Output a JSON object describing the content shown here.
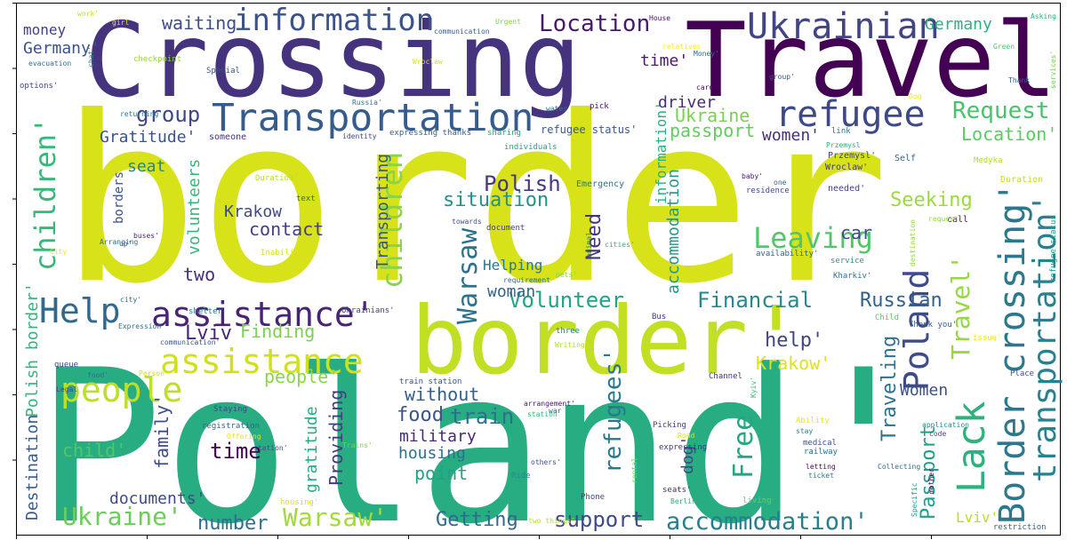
{
  "chart_data": {
    "type": "wordcloud",
    "background": "#ffffff",
    "colormap": "viridis",
    "axes": {
      "x_ticks": 8,
      "y_ticks": 8,
      "tick_labels": false
    },
    "words": [
      {
        "text": "border",
        "color": "#d7e219"
      },
      {
        "text": "Poland'",
        "color": "#27ad81"
      },
      {
        "text": "Crossing",
        "color": "#46337e"
      },
      {
        "text": "Travel",
        "color": "#440154"
      },
      {
        "text": "border'",
        "color": "#c2df23"
      },
      {
        "text": "Transportation",
        "color": "#365c8d"
      },
      {
        "text": "Ukrainian",
        "color": "#414487"
      },
      {
        "text": "information",
        "color": "#3b528b"
      },
      {
        "text": "refugee",
        "color": "#3e4989"
      },
      {
        "text": "assistance'",
        "color": "#482475"
      },
      {
        "text": "Help",
        "color": "#31688e"
      },
      {
        "text": "assistance",
        "color": "#d0e11c"
      },
      {
        "text": "people",
        "color": "#bddf26"
      },
      {
        "text": "Border crossing'",
        "color": "#2a788e"
      },
      {
        "text": "transportation'",
        "color": "#26828e"
      },
      {
        "text": "Lack",
        "color": "#2db27d"
      },
      {
        "text": "Poland",
        "color": "#3e4a89"
      },
      {
        "text": "Travel'",
        "color": "#95d840"
      },
      {
        "text": "Leaving",
        "color": "#52c569"
      },
      {
        "text": "children'",
        "color": "#37b878"
      },
      {
        "text": "children",
        "color": "#89d548"
      },
      {
        "text": "Warsaw",
        "color": "#2c728e"
      },
      {
        "text": "Warsaw'",
        "color": "#a2da37"
      },
      {
        "text": "Ukraine'",
        "color": "#6ccd5a"
      },
      {
        "text": "accommodation'",
        "color": "#277f8e"
      },
      {
        "text": "Location",
        "color": "#481a6c"
      },
      {
        "text": "Request",
        "color": "#4ac16d"
      },
      {
        "text": "Location'",
        "color": "#5ec962"
      },
      {
        "text": "group",
        "color": "#3f4788"
      },
      {
        "text": "Polish",
        "color": "#453781"
      },
      {
        "text": "situation",
        "color": "#21918c"
      },
      {
        "text": "Volunteer",
        "color": "#20a486"
      },
      {
        "text": "Financial",
        "color": "#23898e"
      },
      {
        "text": "Russian",
        "color": "#33638d"
      },
      {
        "text": "Free",
        "color": "#22a785"
      },
      {
        "text": "refugees'",
        "color": "#2a788e"
      },
      {
        "text": "Passport",
        "color": "#1f9e89"
      },
      {
        "text": "Traveling",
        "color": "#2c728e"
      },
      {
        "text": "Seeking",
        "color": "#9bd93c"
      },
      {
        "text": "Women",
        "color": "#3b528b"
      },
      {
        "text": "Krakow'",
        "color": "#dde318"
      },
      {
        "text": "help'",
        "color": "#414487"
      },
      {
        "text": "support",
        "color": "#3e4a89"
      },
      {
        "text": "Getting",
        "color": "#31688e"
      },
      {
        "text": "number",
        "color": "#2e6e8e"
      },
      {
        "text": "Lviv",
        "color": "#482475"
      },
      {
        "text": "Finding",
        "color": "#7ad151"
      },
      {
        "text": "people'",
        "color": "#8bd646"
      },
      {
        "text": "train",
        "color": "#2d708e"
      },
      {
        "text": "food",
        "color": "#3a548c"
      },
      {
        "text": "without",
        "color": "#365d8d"
      },
      {
        "text": "military",
        "color": "#482878"
      },
      {
        "text": "housing",
        "color": "#2e6f8e"
      },
      {
        "text": "point",
        "color": "#1fa287"
      },
      {
        "text": "Providing",
        "color": "#443983"
      },
      {
        "text": "gratitude",
        "color": "#25ab82"
      },
      {
        "text": "time",
        "color": "#440154"
      },
      {
        "text": "child'",
        "color": "#54c568"
      },
      {
        "text": "family'",
        "color": "#3d4d8a"
      },
      {
        "text": "Destination",
        "color": "#365c8d"
      },
      {
        "text": "Polish border'",
        "color": "#2fb47c"
      },
      {
        "text": "documents'",
        "color": "#3e4989"
      },
      {
        "text": "volunteers",
        "color": "#35b779"
      },
      {
        "text": "Krakow",
        "color": "#3e4989"
      },
      {
        "text": "contact",
        "color": "#433e85"
      },
      {
        "text": "two",
        "color": "#472d7b"
      },
      {
        "text": "Helping",
        "color": "#2a788e"
      },
      {
        "text": "woman",
        "color": "#33638d"
      },
      {
        "text": "Need",
        "color": "#46317e"
      },
      {
        "text": "Transporting",
        "color": "#3a538b"
      },
      {
        "text": "accommodation",
        "color": "#1f988b"
      },
      {
        "text": "information'",
        "color": "#2ab07f"
      },
      {
        "text": "car",
        "color": "#3e4a89"
      },
      {
        "text": "Ukraine",
        "color": "#79d151"
      },
      {
        "text": "passport",
        "color": "#63cb5f"
      },
      {
        "text": "women'",
        "color": "#46307e"
      },
      {
        "text": "Gratitude'",
        "color": "#39558c"
      },
      {
        "text": "seat",
        "color": "#25848e"
      },
      {
        "text": "waiting",
        "color": "#3d4e8a"
      },
      {
        "text": "driver",
        "color": "#472c7a"
      },
      {
        "text": "time'",
        "color": "#481b6d"
      },
      {
        "text": "Germany",
        "color": "#2db27d"
      },
      {
        "text": "Germany'",
        "color": "#3a538b"
      },
      {
        "text": "money",
        "color": "#424086"
      },
      {
        "text": "dog'",
        "color": "#414487"
      },
      {
        "text": "Lviv'",
        "color": "#bade28"
      },
      {
        "text": "borders",
        "color": "#3b518b"
      },
      {
        "text": "work'",
        "color": "#c8e020"
      },
      {
        "text": "girl",
        "color": "#e2e418"
      },
      {
        "text": "communication",
        "color": "#355f8d"
      },
      {
        "text": "Urgent",
        "color": "#7fd34e"
      },
      {
        "text": "House",
        "color": "#471063"
      },
      {
        "text": "Asking",
        "color": "#29af7f"
      },
      {
        "text": "refugee status'",
        "color": "#38588c"
      },
      {
        "text": "sharing",
        "color": "#22a884"
      },
      {
        "text": "expressing thanks",
        "color": "#34608d"
      },
      {
        "text": "identity",
        "color": "#3f4889"
      },
      {
        "text": "someone",
        "color": "#46307e"
      },
      {
        "text": "Emergency",
        "color": "#2a778e"
      },
      {
        "text": "water",
        "color": "#2d718e"
      },
      {
        "text": "pick",
        "color": "#470e61"
      },
      {
        "text": "individuals",
        "color": "#21a685"
      },
      {
        "text": "Przemysl",
        "color": "#27ad81"
      },
      {
        "text": "Przemysl'",
        "color": "#414487"
      },
      {
        "text": "Wroclaw",
        "color": "#d5e21a"
      },
      {
        "text": "Wroclaw'",
        "color": "#443a83"
      },
      {
        "text": "link",
        "color": "#2b758e"
      },
      {
        "text": "Self",
        "color": "#32658e"
      },
      {
        "text": "baby'",
        "color": "#48186a"
      },
      {
        "text": "Medyka",
        "color": "#addc30"
      },
      {
        "text": "Duration",
        "color": "#c0df25"
      },
      {
        "text": "Duration'",
        "color": "#bade28"
      },
      {
        "text": "needed'",
        "color": "#433d84"
      },
      {
        "text": "call",
        "color": "#481668"
      },
      {
        "text": "relatives",
        "color": "#fde725"
      },
      {
        "text": "Money'",
        "color": "#30698e"
      },
      {
        "text": "group'",
        "color": "#3b528b"
      },
      {
        "text": "card'",
        "color": "#46085c"
      },
      {
        "text": "Green",
        "color": "#52c569"
      },
      {
        "text": "services'",
        "color": "#73d056"
      },
      {
        "text": "Thank",
        "color": "#365d8d"
      },
      {
        "text": "Dog",
        "color": "#f1e51d"
      },
      {
        "text": "evacuation",
        "color": "#2e6e8e"
      },
      {
        "text": "checkpoint",
        "color": "#93d741"
      },
      {
        "text": "chat'",
        "color": "#25848e"
      },
      {
        "text": "options'",
        "color": "#3e4a89"
      },
      {
        "text": "Special",
        "color": "#3b528b"
      },
      {
        "text": "returning",
        "color": "#29798e"
      },
      {
        "text": "Russia'",
        "color": "#2a788e"
      },
      {
        "text": "Arranging",
        "color": "#2e6f8e"
      },
      {
        "text": "City",
        "color": "#eae51a"
      },
      {
        "text": "up'",
        "color": "#3d4e8a"
      },
      {
        "text": "buses'",
        "color": "#482576"
      },
      {
        "text": "Inability",
        "color": "#dde318"
      },
      {
        "text": "text",
        "color": "#38598c"
      },
      {
        "text": "residence",
        "color": "#3e4c8a"
      },
      {
        "text": "one",
        "color": "#35608d"
      },
      {
        "text": "towards",
        "color": "#3b528b"
      },
      {
        "text": "document",
        "color": "#424086"
      },
      {
        "text": "animal",
        "color": "#2b748e"
      },
      {
        "text": "cities'",
        "color": "#31b57b"
      },
      {
        "text": "availability'",
        "color": "#34608d"
      },
      {
        "text": "service",
        "color": "#1f9a8a"
      },
      {
        "text": "destination",
        "color": "#95d840"
      },
      {
        "text": "request'",
        "color": "#90d743"
      },
      {
        "text": "refugee status",
        "color": "#1e9d89"
      },
      {
        "text": "pets'",
        "color": "#84d44b"
      },
      {
        "text": "requirement",
        "color": "#2f6b8e"
      },
      {
        "text": "Kharkiv'",
        "color": "#2c718e"
      },
      {
        "text": "city'",
        "color": "#306a8e"
      },
      {
        "text": "shelter",
        "color": "#29788e"
      },
      {
        "text": "Ukrainians'",
        "color": "#433e85"
      },
      {
        "text": "Bus",
        "color": "#443983"
      },
      {
        "text": "Child",
        "color": "#5ac864"
      },
      {
        "text": "Thank you'",
        "color": "#365c8d"
      },
      {
        "text": "issue'",
        "color": "#f2e51d"
      },
      {
        "text": "Expression",
        "color": "#2b758e"
      },
      {
        "text": "communication'",
        "color": "#39568c"
      },
      {
        "text": "Writing",
        "color": "#addc30"
      },
      {
        "text": "three",
        "color": "#277e8e"
      },
      {
        "text": "queue",
        "color": "#3f4889"
      },
      {
        "text": "food'",
        "color": "#2f6c8e"
      },
      {
        "text": "Person",
        "color": "#d2e21b"
      },
      {
        "text": "Legal",
        "color": "#3f4889"
      },
      {
        "text": "train station",
        "color": "#3b528b"
      },
      {
        "text": "Channel",
        "color": "#46337e"
      },
      {
        "text": "Kyiv'",
        "color": "#39b977"
      },
      {
        "text": "Place",
        "color": "#3c4f8a"
      },
      {
        "text": "Staying",
        "color": "#3e4989"
      },
      {
        "text": "arrangement'",
        "color": "#48186a"
      },
      {
        "text": "station",
        "color": "#36b878"
      },
      {
        "text": "registration",
        "color": "#32648e"
      },
      {
        "text": "Offering",
        "color": "#e5e419"
      },
      {
        "text": "station'",
        "color": "#3b518b"
      },
      {
        "text": "Trains'",
        "color": "#7ad151"
      },
      {
        "text": "war",
        "color": "#306a8e"
      },
      {
        "text": "Ability",
        "color": "#eae51a"
      },
      {
        "text": "stay",
        "color": "#27808e"
      },
      {
        "text": "medical",
        "color": "#3a538b"
      },
      {
        "text": "railway",
        "color": "#2c728e"
      },
      {
        "text": "application",
        "color": "#23888e"
      },
      {
        "text": "Picking",
        "color": "#423f85"
      },
      {
        "text": "Road",
        "color": "#dde318"
      },
      {
        "text": "expressing",
        "color": "#46317e"
      },
      {
        "text": "code",
        "color": "#3e4989"
      },
      {
        "text": "letting",
        "color": "#46085c"
      },
      {
        "text": "ticket",
        "color": "#2a778e"
      },
      {
        "text": "Collecting",
        "color": "#2c718e"
      },
      {
        "text": "mother",
        "color": "#440154"
      },
      {
        "text": "Specific",
        "color": "#1f968b"
      },
      {
        "text": "others'",
        "color": "#3b528b"
      },
      {
        "text": "Ride",
        "color": "#23898e"
      },
      {
        "text": "rental",
        "color": "#7ad151"
      },
      {
        "text": "Phone",
        "color": "#3f4889"
      },
      {
        "text": "seats'",
        "color": "#46307e"
      },
      {
        "text": "Berlin'",
        "color": "#29af7f"
      },
      {
        "text": "living",
        "color": "#6ece58"
      },
      {
        "text": "housing'",
        "color": "#dde318"
      },
      {
        "text": "two things'",
        "color": "#bade28"
      },
      {
        "text": "restriction",
        "color": "#32648e"
      }
    ]
  }
}
